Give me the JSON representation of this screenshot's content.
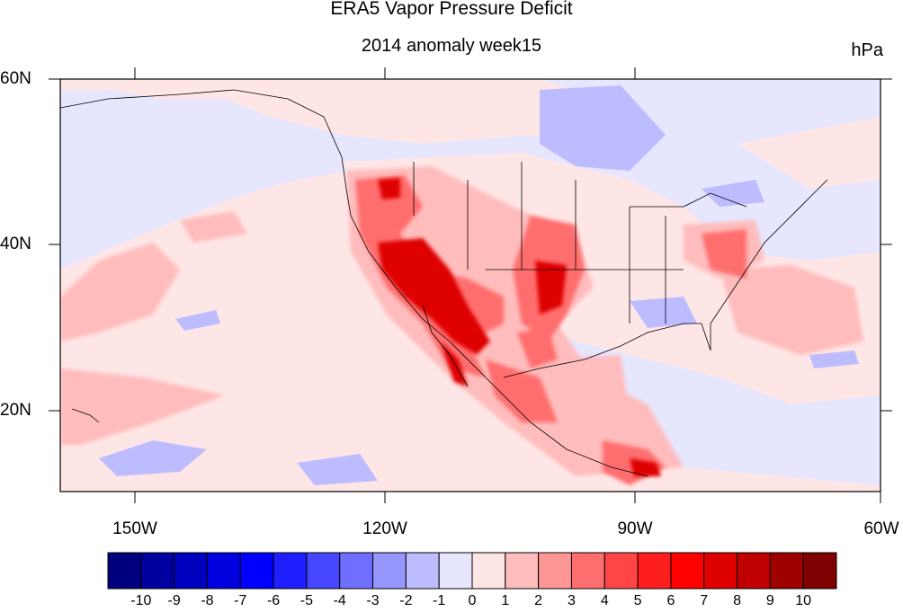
{
  "title": "ERA5 Vapor Pressure Deficit",
  "subtitle": "2014 anomaly week15",
  "units": "hPa",
  "map": {
    "lon_range": [
      -160,
      -60
    ],
    "lat_range": [
      10,
      60
    ],
    "lon_labels": [
      "150W",
      "120W",
      "90W",
      "60W"
    ],
    "lat_labels": [
      "60N",
      "40N",
      "20N"
    ]
  },
  "colorbar": {
    "labels": [
      "-10",
      "-9",
      "-8",
      "-7",
      "-6",
      "-5",
      "-4",
      "-3",
      "-2",
      "-1",
      "0",
      "1",
      "2",
      "3",
      "4",
      "5",
      "6",
      "7",
      "8",
      "9",
      "10"
    ],
    "colors": [
      "#00007f",
      "#00009f",
      "#0000bf",
      "#0000df",
      "#0000ff",
      "#1e1eff",
      "#4646ff",
      "#6e6eff",
      "#9696ff",
      "#bcbcff",
      "#e6e6ff",
      "#ffe6e6",
      "#ffbcbc",
      "#ff9696",
      "#ff6e6e",
      "#ff4646",
      "#ff1e1e",
      "#ff0000",
      "#df0000",
      "#bf0000",
      "#9f0000",
      "#7f0000"
    ]
  }
}
